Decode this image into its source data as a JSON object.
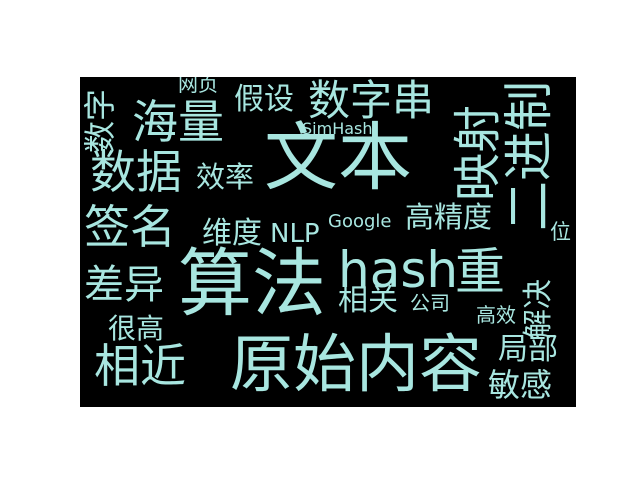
{
  "colors": {
    "canvas": "#ffffff",
    "cloud_background": "#000000",
    "word_color": "#a8e6e0"
  },
  "words": {
    "wenben": "文本",
    "suanfa": "算法",
    "yuanshi_neirong": "原始内容",
    "hash": "hash",
    "zhong": "重",
    "shuju": "数据",
    "hailiang": "海量",
    "shuzichuan": "数字串",
    "yingshe": "映射",
    "erjinzhi": "二进制",
    "qianming": "签名",
    "xiangjin": "相近",
    "chayi": "差异",
    "jiashe": "假设",
    "shuzi": "数字",
    "wangye": "网页",
    "xiaolv": "效率",
    "simhash": "SimHash",
    "weidu": "维度",
    "nlp": "NLP",
    "google": "Google",
    "gaojingdu": "高精度",
    "wei": "位",
    "xiangguan": "相关",
    "gongsi": "公司",
    "gaoxiao": "高效",
    "jiejue": "解决",
    "henggao": "很高",
    "jubu": "局部",
    "mingan": "敏感"
  }
}
